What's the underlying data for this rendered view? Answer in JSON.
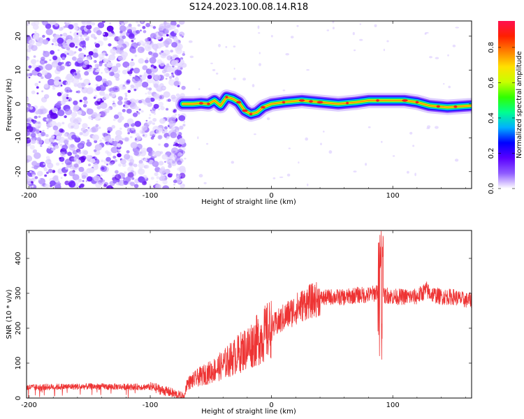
{
  "figure_title": "S124.2023.100.08.14.R18",
  "chart_data": [
    {
      "type": "heatmap",
      "xlabel": "Height of straight line (km)",
      "ylabel": "Frequency (Hz)",
      "xlim": [
        -202,
        165
      ],
      "ylim": [
        -25,
        24.5
      ],
      "xticks": [
        -200,
        -100,
        0,
        100
      ],
      "yticks": [
        20,
        10,
        0,
        -10,
        -20
      ],
      "grid": false,
      "noise_region_x": [
        -202,
        -72
      ],
      "trace_start_x": -73,
      "trace": [
        {
          "x": -73,
          "y": 0.0
        },
        {
          "x": -65,
          "y": 0.0
        },
        {
          "x": -58,
          "y": 0.2
        },
        {
          "x": -52,
          "y": 0.0
        },
        {
          "x": -47,
          "y": 1.0
        },
        {
          "x": -42,
          "y": -0.5
        },
        {
          "x": -37,
          "y": 2.0
        },
        {
          "x": -32,
          "y": 1.5
        },
        {
          "x": -27,
          "y": 0.5
        },
        {
          "x": -22,
          "y": -2.0
        },
        {
          "x": -17,
          "y": -3.0
        },
        {
          "x": -12,
          "y": -2.5
        },
        {
          "x": -7,
          "y": -1.0
        },
        {
          "x": 0,
          "y": 0.0
        },
        {
          "x": 10,
          "y": 0.5
        },
        {
          "x": 25,
          "y": 1.0
        },
        {
          "x": 40,
          "y": 0.5
        },
        {
          "x": 55,
          "y": 0.0
        },
        {
          "x": 70,
          "y": 0.5
        },
        {
          "x": 80,
          "y": 1.0
        },
        {
          "x": 95,
          "y": 1.0
        },
        {
          "x": 110,
          "y": 1.0
        },
        {
          "x": 120,
          "y": 0.5
        },
        {
          "x": 130,
          "y": -0.5
        },
        {
          "x": 145,
          "y": -1.0
        },
        {
          "x": 165,
          "y": -0.5
        }
      ],
      "colorbar": {
        "label": "Normalized spectral amplitude",
        "range": [
          0.0,
          0.95
        ],
        "ticks": [
          0.0,
          0.2,
          0.4,
          0.6,
          0.8
        ],
        "tick_labels": [
          "0.0",
          "0.2",
          "0.4",
          "0.6",
          "0.8"
        ],
        "stops": [
          "#ffffff",
          "#8f5cff",
          "#5a00ff",
          "#0000ff",
          "#00b0ff",
          "#00ff90",
          "#30ff00",
          "#c8ff00",
          "#ffe000",
          "#ff8000",
          "#ff2000",
          "#ff1050"
        ]
      }
    },
    {
      "type": "line",
      "xlabel": "Height of straight line (km)",
      "ylabel": "SNR (10 * v/v)",
      "xlim": [
        -202,
        165
      ],
      "ylim": [
        0,
        480
      ],
      "xticks": [
        -200,
        -100,
        0,
        100
      ],
      "yticks": [
        0,
        100,
        200,
        300,
        400
      ],
      "grid": false,
      "color": "#ee3333",
      "series": [
        {
          "x": [
            -202,
            -180,
            -160,
            -140,
            -120,
            -100,
            -95,
            -90,
            -85,
            -80,
            -75,
            -72,
            -70,
            -60,
            -50,
            -40,
            -30,
            -20,
            -10,
            0,
            10,
            20,
            30,
            40,
            50,
            60,
            70,
            80,
            85,
            88,
            90,
            92,
            95,
            100,
            110,
            120,
            128,
            130,
            140,
            150,
            160,
            165
          ],
          "y": [
            30,
            32,
            33,
            33,
            32,
            32,
            28,
            22,
            18,
            12,
            5,
            2,
            40,
            60,
            75,
            95,
            120,
            145,
            170,
            200,
            230,
            255,
            275,
            285,
            290,
            288,
            295,
            295,
            300,
            310,
            300,
            290,
            295,
            290,
            290,
            290,
            310,
            300,
            290,
            290,
            280,
            280
          ]
        }
      ],
      "spike": {
        "x": 90,
        "max": 478,
        "min": 110
      }
    }
  ]
}
